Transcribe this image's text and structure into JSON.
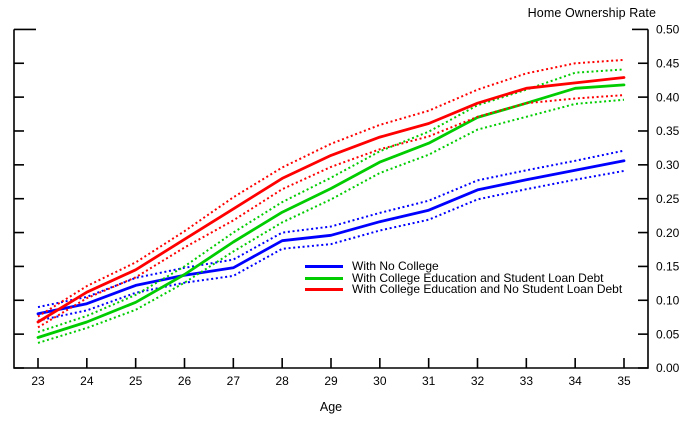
{
  "chart_data": {
    "type": "line",
    "title": "Home Ownership Rate",
    "xlabel": "Age",
    "grid": false,
    "legend_position": "inside-right-middle",
    "axis_color": "#000000",
    "background": "#ffffff",
    "x": [
      23,
      24,
      25,
      26,
      27,
      28,
      29,
      30,
      31,
      32,
      33,
      34,
      35
    ],
    "x_tick_labels": [
      "23",
      "24",
      "25",
      "26",
      "27",
      "28",
      "29",
      "30",
      "31",
      "32",
      "33",
      "34",
      "35"
    ],
    "ylim": [
      0,
      0.5
    ],
    "y_tick_values": [
      0,
      0.05,
      0.1,
      0.15,
      0.2,
      0.25,
      0.3,
      0.35,
      0.4,
      0.45,
      0.5
    ],
    "y_tick_labels": [
      "0.00",
      "0.05",
      "0.10",
      "0.15",
      "0.20",
      "0.25",
      "0.30",
      "0.35",
      "0.40",
      "0.45",
      "0.50"
    ],
    "band_style": "dotted",
    "series": [
      {
        "name": "With No College",
        "color": "#0000FF",
        "values": [
          0.08,
          0.095,
          0.122,
          0.137,
          0.148,
          0.188,
          0.196,
          0.216,
          0.233,
          0.263,
          0.278,
          0.292,
          0.306
        ],
        "upper_band": [
          0.09,
          0.105,
          0.133,
          0.148,
          0.16,
          0.2,
          0.209,
          0.229,
          0.247,
          0.277,
          0.292,
          0.306,
          0.321
        ],
        "lower_band": [
          0.07,
          0.085,
          0.111,
          0.126,
          0.136,
          0.176,
          0.183,
          0.203,
          0.219,
          0.249,
          0.264,
          0.278,
          0.291
        ]
      },
      {
        "name": "With College Education and Student Loan Debt",
        "color": "#00CC00",
        "values": [
          0.045,
          0.068,
          0.097,
          0.138,
          0.186,
          0.23,
          0.265,
          0.304,
          0.332,
          0.37,
          0.391,
          0.413,
          0.418
        ],
        "upper_band": [
          0.053,
          0.077,
          0.108,
          0.15,
          0.2,
          0.245,
          0.281,
          0.32,
          0.349,
          0.388,
          0.411,
          0.436,
          0.441
        ],
        "lower_band": [
          0.037,
          0.059,
          0.086,
          0.126,
          0.172,
          0.215,
          0.249,
          0.288,
          0.315,
          0.352,
          0.371,
          0.39,
          0.396
        ]
      },
      {
        "name": "With College Education and No Student Loan Debt",
        "color": "#FF0000",
        "values": [
          0.068,
          0.112,
          0.145,
          0.19,
          0.235,
          0.28,
          0.314,
          0.341,
          0.361,
          0.391,
          0.413,
          0.421,
          0.429
        ],
        "upper_band": [
          0.076,
          0.121,
          0.156,
          0.202,
          0.252,
          0.296,
          0.331,
          0.359,
          0.38,
          0.411,
          0.435,
          0.45,
          0.455
        ],
        "lower_band": [
          0.06,
          0.103,
          0.134,
          0.178,
          0.218,
          0.264,
          0.297,
          0.323,
          0.342,
          0.371,
          0.391,
          0.398,
          0.403
        ]
      }
    ]
  }
}
